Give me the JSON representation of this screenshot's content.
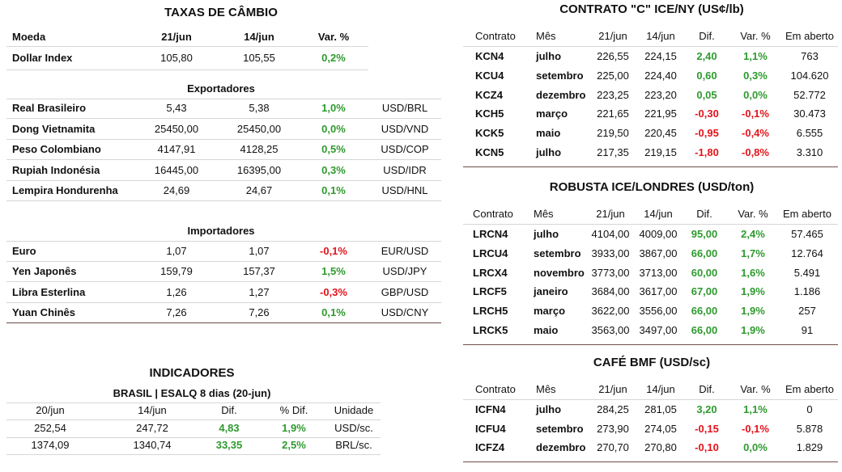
{
  "taxas": {
    "title": "TAXAS DE CÂMBIO",
    "header": [
      "Moeda",
      "21/jun",
      "14/jun",
      "Var. %"
    ],
    "dollar_index": [
      "Dollar Index",
      "105,80",
      "105,55",
      "0,2%"
    ],
    "exportadores": {
      "title": "Exportadores",
      "rows": [
        [
          "Real Brasileiro",
          "5,43",
          "5,38",
          "1,0%",
          "USD/BRL"
        ],
        [
          "Dong Vietnamita",
          "25450,00",
          "25450,00",
          "0,0%",
          "USD/VND"
        ],
        [
          "Peso Colombiano",
          "4147,91",
          "4128,25",
          "0,5%",
          "USD/COP"
        ],
        [
          "Rupiah Indonésia",
          "16445,00",
          "16395,00",
          "0,3%",
          "USD/IDR"
        ],
        [
          "Lempira Hondurenha",
          "24,69",
          "24,67",
          "0,1%",
          "USD/HNL"
        ]
      ]
    },
    "importadores": {
      "title": "Importadores",
      "rows": [
        [
          "Euro",
          "1,07",
          "1,07",
          "-0,1%",
          "EUR/USD"
        ],
        [
          "Yen Japonês",
          "159,79",
          "157,37",
          "1,5%",
          "USD/JPY"
        ],
        [
          "Libra Esterlina",
          "1,26",
          "1,27",
          "-0,3%",
          "GBP/USD"
        ],
        [
          "Yuan Chinês",
          "7,26",
          "7,26",
          "0,1%",
          "USD/CNY"
        ]
      ]
    }
  },
  "indicadores": {
    "title": "INDICADORES",
    "subtitle": "BRASIL | ESALQ 8 dias (20-jun)",
    "header": [
      "20/jun",
      "14/jun",
      "Dif.",
      "% Dif.",
      "Unidade"
    ],
    "rows": [
      [
        "252,54",
        "247,72",
        "4,83",
        "1,9%",
        "USD/sc."
      ],
      [
        "1374,09",
        "1340,74",
        "33,35",
        "2,5%",
        "BRL/sc."
      ]
    ]
  },
  "contrato_c": {
    "title": "CONTRATO \"C\" ICE/NY (US¢/lb)",
    "header": [
      "Contrato",
      "Mês",
      "21/jun",
      "14/jun",
      "Dif.",
      "Var. %",
      "Em aberto"
    ],
    "rows": [
      [
        "KCN4",
        "julho",
        "226,55",
        "224,15",
        "2,40",
        "1,1%",
        "763"
      ],
      [
        "KCU4",
        "setembro",
        "225,00",
        "224,40",
        "0,60",
        "0,3%",
        "104.620"
      ],
      [
        "KCZ4",
        "dezembro",
        "223,25",
        "223,20",
        "0,05",
        "0,0%",
        "52.772"
      ],
      [
        "KCH5",
        "março",
        "221,65",
        "221,95",
        "-0,30",
        "-0,1%",
        "30.473"
      ],
      [
        "KCK5",
        "maio",
        "219,50",
        "220,45",
        "-0,95",
        "-0,4%",
        "6.555"
      ],
      [
        "KCN5",
        "julho",
        "217,35",
        "219,15",
        "-1,80",
        "-0,8%",
        "3.310"
      ]
    ]
  },
  "robusta": {
    "title": "ROBUSTA ICE/LONDRES (USD/ton)",
    "header": [
      "Contrato",
      "Mês",
      "21/jun",
      "14/jun",
      "Dif.",
      "Var. %",
      "Em aberto"
    ],
    "rows": [
      [
        "LRCN4",
        "julho",
        "4104,00",
        "4009,00",
        "95,00",
        "2,4%",
        "57.465"
      ],
      [
        "LRCU4",
        "setembro",
        "3933,00",
        "3867,00",
        "66,00",
        "1,7%",
        "12.764"
      ],
      [
        "LRCX4",
        "novembro",
        "3773,00",
        "3713,00",
        "60,00",
        "1,6%",
        "5.491"
      ],
      [
        "LRCF5",
        "janeiro",
        "3684,00",
        "3617,00",
        "67,00",
        "1,9%",
        "1.186"
      ],
      [
        "LRCH5",
        "março",
        "3622,00",
        "3556,00",
        "66,00",
        "1,9%",
        "257"
      ],
      [
        "LRCK5",
        "maio",
        "3563,00",
        "3497,00",
        "66,00",
        "1,9%",
        "91"
      ]
    ]
  },
  "cafe_bmf": {
    "title": "CAFÉ BMF (USD/sc)",
    "header": [
      "Contrato",
      "Mês",
      "21/jun",
      "14/jun",
      "Dif.",
      "Var. %",
      "Em aberto"
    ],
    "rows": [
      [
        "ICFN4",
        "julho",
        "284,25",
        "281,05",
        "3,20",
        "1,1%",
        "0"
      ],
      [
        "ICFU4",
        "setembro",
        "273,90",
        "274,05",
        "-0,15",
        "-0,1%",
        "5.878"
      ],
      [
        "ICFZ4",
        "dezembro",
        "270,70",
        "270,80",
        "-0,10",
        "0,0%",
        "1.829"
      ]
    ]
  }
}
